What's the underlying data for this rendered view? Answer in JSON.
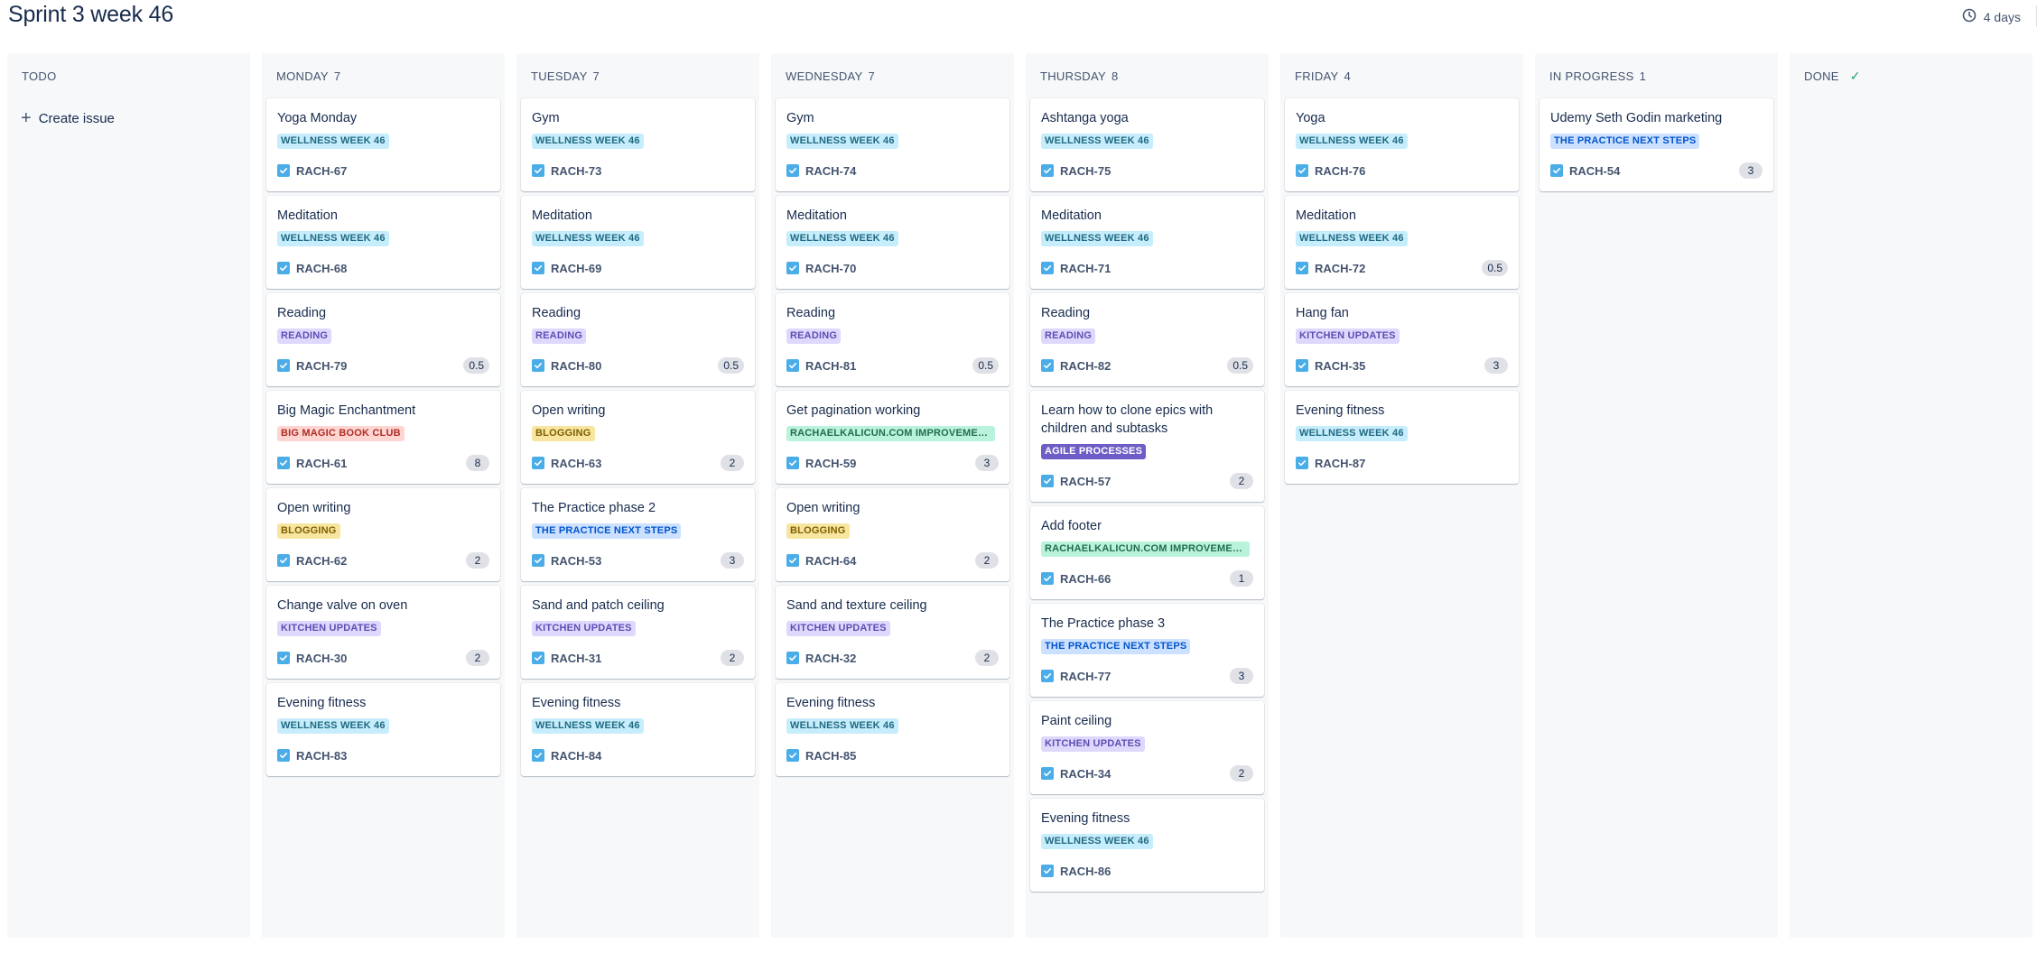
{
  "page_title": "Sprint 3 week 46",
  "sprint_timer": {
    "icon": "clock-icon",
    "label": "4 days"
  },
  "board": {
    "columns": [
      {
        "name": "TODO",
        "count": "",
        "create_label": "Create issue",
        "cards": []
      },
      {
        "name": "MONDAY",
        "count": "7",
        "cards": [
          {
            "title": "Yoga Monday",
            "epic": "WELLNESS WEEK 46",
            "key": "RACH-67",
            "points": ""
          },
          {
            "title": "Meditation",
            "epic": "WELLNESS WEEK 46",
            "key": "RACH-68",
            "points": ""
          },
          {
            "title": "Reading",
            "epic": "READING",
            "key": "RACH-79",
            "points": "0.5"
          },
          {
            "title": "Big Magic Enchantment",
            "epic": "BIG MAGIC BOOK CLUB",
            "key": "RACH-61",
            "points": "8"
          },
          {
            "title": "Open writing",
            "epic": "BLOGGING",
            "key": "RACH-62",
            "points": "2"
          },
          {
            "title": "Change valve on oven",
            "epic": "KITCHEN UPDATES",
            "key": "RACH-30",
            "points": "2"
          },
          {
            "title": "Evening fitness",
            "epic": "WELLNESS WEEK 46",
            "key": "RACH-83",
            "points": ""
          }
        ]
      },
      {
        "name": "TUESDAY",
        "count": "7",
        "cards": [
          {
            "title": "Gym",
            "epic": "WELLNESS WEEK 46",
            "key": "RACH-73",
            "points": ""
          },
          {
            "title": "Meditation",
            "epic": "WELLNESS WEEK 46",
            "key": "RACH-69",
            "points": ""
          },
          {
            "title": "Reading",
            "epic": "READING",
            "key": "RACH-80",
            "points": "0.5"
          },
          {
            "title": "Open writing",
            "epic": "BLOGGING",
            "key": "RACH-63",
            "points": "2"
          },
          {
            "title": "The Practice phase 2",
            "epic": "THE PRACTICE NEXT STEPS",
            "key": "RACH-53",
            "points": "3"
          },
          {
            "title": "Sand and patch ceiling",
            "epic": "KITCHEN UPDATES",
            "key": "RACH-31",
            "points": "2"
          },
          {
            "title": "Evening fitness",
            "epic": "WELLNESS WEEK 46",
            "key": "RACH-84",
            "points": ""
          }
        ]
      },
      {
        "name": "WEDNESDAY",
        "count": "7",
        "cards": [
          {
            "title": "Gym",
            "epic": "WELLNESS WEEK 46",
            "key": "RACH-74",
            "points": ""
          },
          {
            "title": "Meditation",
            "epic": "WELLNESS WEEK 46",
            "key": "RACH-70",
            "points": ""
          },
          {
            "title": "Reading",
            "epic": "READING",
            "key": "RACH-81",
            "points": "0.5"
          },
          {
            "title": "Get pagination working",
            "epic": "RACHAELKALICUN.COM IMPROVEMEN...",
            "key": "RACH-59",
            "points": "3"
          },
          {
            "title": "Open writing",
            "epic": "BLOGGING",
            "key": "RACH-64",
            "points": "2"
          },
          {
            "title": "Sand and texture ceiling",
            "epic": "KITCHEN UPDATES",
            "key": "RACH-32",
            "points": "2"
          },
          {
            "title": "Evening fitness",
            "epic": "WELLNESS WEEK 46",
            "key": "RACH-85",
            "points": ""
          }
        ]
      },
      {
        "name": "THURSDAY",
        "count": "8",
        "cards": [
          {
            "title": "Ashtanga yoga",
            "epic": "WELLNESS WEEK 46",
            "key": "RACH-75",
            "points": ""
          },
          {
            "title": "Meditation",
            "epic": "WELLNESS WEEK 46",
            "key": "RACH-71",
            "points": ""
          },
          {
            "title": "Reading",
            "epic": "READING",
            "key": "RACH-82",
            "points": "0.5"
          },
          {
            "title": "Learn how to clone epics with children and subtasks",
            "epic": "AGILE PROCESSES",
            "key": "RACH-57",
            "points": "2"
          },
          {
            "title": "Add footer",
            "epic": "RACHAELKALICUN.COM IMPROVEMEN...",
            "key": "RACH-66",
            "points": "1"
          },
          {
            "title": "The Practice phase 3",
            "epic": "THE PRACTICE NEXT STEPS",
            "key": "RACH-77",
            "points": "3"
          },
          {
            "title": "Paint ceiling",
            "epic": "KITCHEN UPDATES",
            "key": "RACH-34",
            "points": "2"
          },
          {
            "title": "Evening fitness",
            "epic": "WELLNESS WEEK 46",
            "key": "RACH-86",
            "points": ""
          }
        ]
      },
      {
        "name": "FRIDAY",
        "count": "4",
        "cards": [
          {
            "title": "Yoga",
            "epic": "WELLNESS WEEK 46",
            "key": "RACH-76",
            "points": ""
          },
          {
            "title": "Meditation",
            "epic": "WELLNESS WEEK 46",
            "key": "RACH-72",
            "points": "0.5"
          },
          {
            "title": "Hang fan",
            "epic": "KITCHEN UPDATES",
            "key": "RACH-35",
            "points": "3"
          },
          {
            "title": "Evening fitness",
            "epic": "WELLNESS WEEK 46",
            "key": "RACH-87",
            "points": ""
          }
        ]
      },
      {
        "name": "IN PROGRESS",
        "count": "1",
        "cards": [
          {
            "title": "Udemy Seth Godin marketing",
            "epic": "THE PRACTICE NEXT STEPS",
            "key": "RACH-54",
            "points": "3"
          }
        ]
      },
      {
        "name": "DONE",
        "count": "",
        "done_icon": "checkmark-icon",
        "cards": []
      }
    ]
  },
  "colors": {
    "story_icon": "#4bade8",
    "column_bg": "#f7f8f9",
    "text": "#172b4d"
  }
}
